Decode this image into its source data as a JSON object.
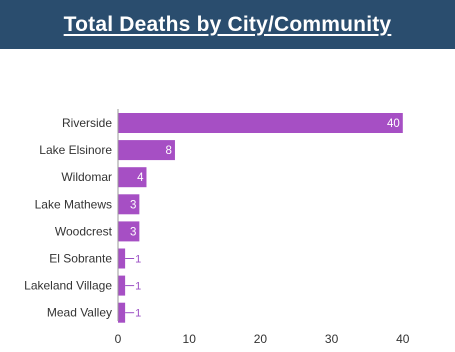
{
  "header": {
    "title": "Total Deaths by City/Community"
  },
  "chart_data": {
    "type": "bar",
    "orientation": "horizontal",
    "title": "Total Deaths by City/Community",
    "xlabel": "",
    "ylabel": "",
    "categories": [
      "Riverside",
      "Lake Elsinore",
      "Wildomar",
      "Lake Mathews",
      "Woodcrest",
      "El Sobrante",
      "Lakeland Village",
      "Mead Valley"
    ],
    "values": [
      40,
      8,
      4,
      3,
      3,
      1,
      1,
      1
    ],
    "xlim": [
      0,
      43
    ],
    "xticks": [
      0,
      10,
      20,
      30,
      40
    ],
    "grid": false,
    "legend": "none",
    "bar_color": "#a64fc4",
    "label_out_color": "#9b4fc4",
    "axis_color": "#999999"
  }
}
